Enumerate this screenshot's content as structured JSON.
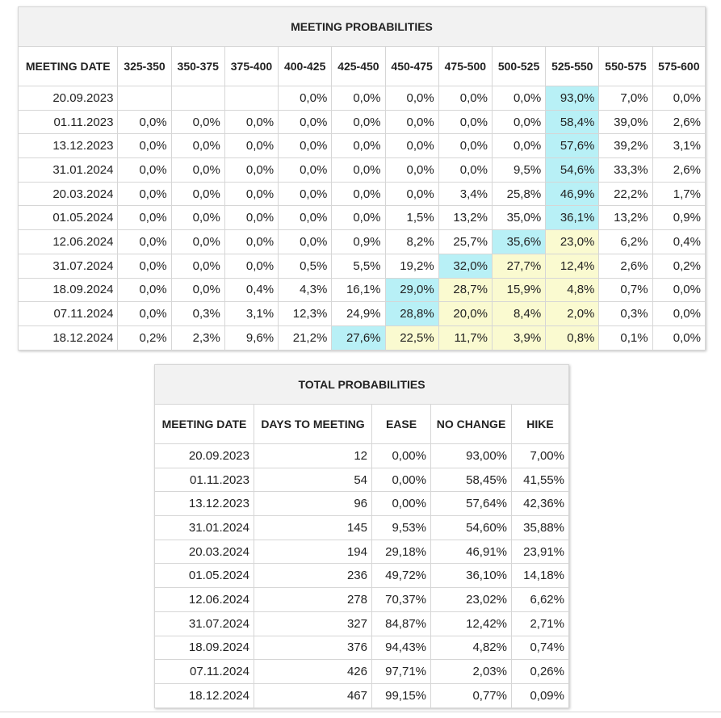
{
  "meeting_probabilities": {
    "title": "MEETING PROBABILITIES",
    "columns": [
      "MEETING DATE",
      "325-350",
      "350-375",
      "375-400",
      "400-425",
      "425-450",
      "450-475",
      "475-500",
      "500-525",
      "525-550",
      "550-575",
      "575-600"
    ],
    "rows": [
      {
        "date": "20.09.2023",
        "values": [
          "",
          "",
          "",
          "0,0%",
          "0,0%",
          "0,0%",
          "0,0%",
          "0,0%",
          "93,0%",
          "7,0%",
          "0,0%"
        ],
        "hl": [
          "",
          "",
          "",
          "",
          "",
          "",
          "",
          "",
          "b",
          "",
          ""
        ]
      },
      {
        "date": "01.11.2023",
        "values": [
          "0,0%",
          "0,0%",
          "0,0%",
          "0,0%",
          "0,0%",
          "0,0%",
          "0,0%",
          "0,0%",
          "58,4%",
          "39,0%",
          "2,6%"
        ],
        "hl": [
          "",
          "",
          "",
          "",
          "",
          "",
          "",
          "",
          "b",
          "",
          ""
        ]
      },
      {
        "date": "13.12.2023",
        "values": [
          "0,0%",
          "0,0%",
          "0,0%",
          "0,0%",
          "0,0%",
          "0,0%",
          "0,0%",
          "0,0%",
          "57,6%",
          "39,2%",
          "3,1%"
        ],
        "hl": [
          "",
          "",
          "",
          "",
          "",
          "",
          "",
          "",
          "b",
          "",
          ""
        ]
      },
      {
        "date": "31.01.2024",
        "values": [
          "0,0%",
          "0,0%",
          "0,0%",
          "0,0%",
          "0,0%",
          "0,0%",
          "0,0%",
          "9,5%",
          "54,6%",
          "33,3%",
          "2,6%"
        ],
        "hl": [
          "",
          "",
          "",
          "",
          "",
          "",
          "",
          "",
          "b",
          "",
          ""
        ]
      },
      {
        "date": "20.03.2024",
        "values": [
          "0,0%",
          "0,0%",
          "0,0%",
          "0,0%",
          "0,0%",
          "0,0%",
          "3,4%",
          "25,8%",
          "46,9%",
          "22,2%",
          "1,7%"
        ],
        "hl": [
          "",
          "",
          "",
          "",
          "",
          "",
          "",
          "",
          "b",
          "",
          ""
        ]
      },
      {
        "date": "01.05.2024",
        "values": [
          "0,0%",
          "0,0%",
          "0,0%",
          "0,0%",
          "0,0%",
          "1,5%",
          "13,2%",
          "35,0%",
          "36,1%",
          "13,2%",
          "0,9%"
        ],
        "hl": [
          "",
          "",
          "",
          "",
          "",
          "",
          "",
          "",
          "b",
          "",
          ""
        ]
      },
      {
        "date": "12.06.2024",
        "values": [
          "0,0%",
          "0,0%",
          "0,0%",
          "0,0%",
          "0,9%",
          "8,2%",
          "25,7%",
          "35,6%",
          "23,0%",
          "6,2%",
          "0,4%"
        ],
        "hl": [
          "",
          "",
          "",
          "",
          "",
          "",
          "",
          "b",
          "y",
          "",
          ""
        ]
      },
      {
        "date": "31.07.2024",
        "values": [
          "0,0%",
          "0,0%",
          "0,0%",
          "0,5%",
          "5,5%",
          "19,2%",
          "32,0%",
          "27,7%",
          "12,4%",
          "2,6%",
          "0,2%"
        ],
        "hl": [
          "",
          "",
          "",
          "",
          "",
          "",
          "b",
          "y",
          "y",
          "",
          ""
        ]
      },
      {
        "date": "18.09.2024",
        "values": [
          "0,0%",
          "0,0%",
          "0,4%",
          "4,3%",
          "16,1%",
          "29,0%",
          "28,7%",
          "15,9%",
          "4,8%",
          "0,7%",
          "0,0%"
        ],
        "hl": [
          "",
          "",
          "",
          "",
          "",
          "b",
          "y",
          "y",
          "y",
          "",
          ""
        ]
      },
      {
        "date": "07.11.2024",
        "values": [
          "0,0%",
          "0,3%",
          "3,1%",
          "12,3%",
          "24,9%",
          "28,8%",
          "20,0%",
          "8,4%",
          "2,0%",
          "0,3%",
          "0,0%"
        ],
        "hl": [
          "",
          "",
          "",
          "",
          "",
          "b",
          "y",
          "y",
          "y",
          "",
          ""
        ]
      },
      {
        "date": "18.12.2024",
        "values": [
          "0,2%",
          "2,3%",
          "9,6%",
          "21,2%",
          "27,6%",
          "22,5%",
          "11,7%",
          "3,9%",
          "0,8%",
          "0,1%",
          "0,0%"
        ],
        "hl": [
          "",
          "",
          "",
          "",
          "b",
          "y",
          "y",
          "y",
          "y",
          "",
          ""
        ]
      }
    ]
  },
  "total_probabilities": {
    "title": "TOTAL PROBABILITIES",
    "columns": [
      "MEETING DATE",
      "DAYS TO MEETING",
      "EASE",
      "NO CHANGE",
      "HIKE"
    ],
    "rows": [
      [
        "20.09.2023",
        "12",
        "0,00%",
        "93,00%",
        "7,00%"
      ],
      [
        "01.11.2023",
        "54",
        "0,00%",
        "58,45%",
        "41,55%"
      ],
      [
        "13.12.2023",
        "96",
        "0,00%",
        "57,64%",
        "42,36%"
      ],
      [
        "31.01.2024",
        "145",
        "9,53%",
        "54,60%",
        "35,88%"
      ],
      [
        "20.03.2024",
        "194",
        "29,18%",
        "46,91%",
        "23,91%"
      ],
      [
        "01.05.2024",
        "236",
        "49,72%",
        "36,10%",
        "14,18%"
      ],
      [
        "12.06.2024",
        "278",
        "70,37%",
        "23,02%",
        "6,62%"
      ],
      [
        "31.07.2024",
        "327",
        "84,87%",
        "12,42%",
        "2,71%"
      ],
      [
        "18.09.2024",
        "376",
        "94,43%",
        "4,82%",
        "0,74%"
      ],
      [
        "07.11.2024",
        "426",
        "97,71%",
        "2,03%",
        "0,26%"
      ],
      [
        "18.12.2024",
        "467",
        "99,15%",
        "0,77%",
        "0,09%"
      ]
    ]
  },
  "colors": {
    "highlight_blue": "#b8f0f6",
    "highlight_yellow": "#fafad0",
    "header_bg": "#f2f2f2",
    "border": "#d6d6d6"
  }
}
